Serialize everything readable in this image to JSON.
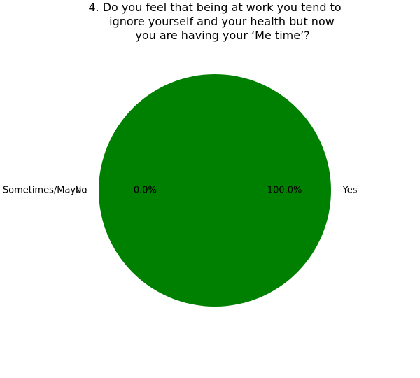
{
  "chart_data": {
    "type": "pie",
    "title_lines": [
      "4. Do you feel that being at work you tend to",
      "ignore yourself and your health but now",
      "you are having your ‘Me time’?"
    ],
    "slices": [
      {
        "label": "Yes",
        "value": 100.0,
        "pct_label": "100.0%",
        "color": "#008000"
      },
      {
        "label": "No",
        "value": 0.0,
        "pct_label": "0.0%",
        "color": "#ff0000"
      },
      {
        "label": "Sometimes/Maybe",
        "value": 0.0,
        "pct_label": "0.0%",
        "color": "#ffa500"
      }
    ],
    "start_angle_deg": 180,
    "legend": "none"
  }
}
